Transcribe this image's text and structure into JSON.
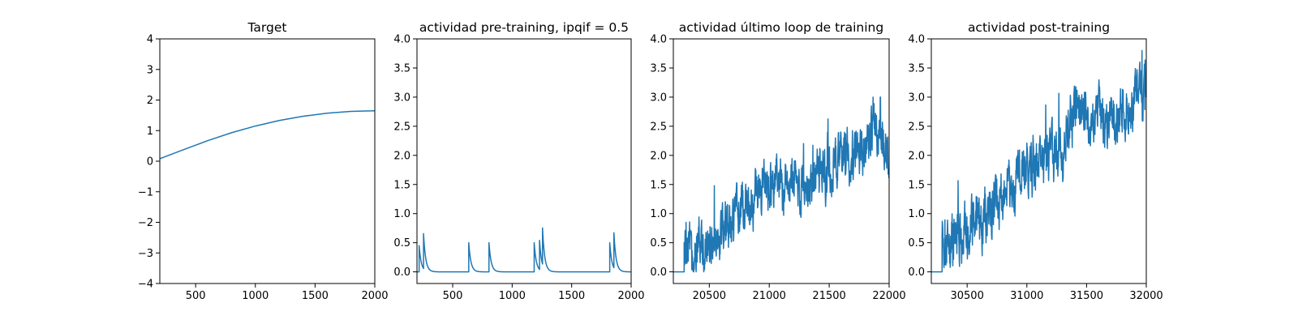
{
  "chart_data": [
    {
      "type": "line",
      "title": "Target",
      "xlim": [
        200,
        2000
      ],
      "ylim": [
        -4,
        4
      ],
      "xticks": [
        500,
        1000,
        1500,
        2000
      ],
      "yticks": [
        -4,
        -3,
        -2,
        -1,
        0,
        1,
        2,
        3,
        4
      ],
      "xtick_labels": [
        "500",
        "1000",
        "1500",
        "2000"
      ],
      "ytick_labels": [
        "−4",
        "−3",
        "−2",
        "−1",
        "0",
        "1",
        "2",
        "3",
        "4"
      ],
      "grid": false,
      "color": "#1f77b4",
      "series": [
        {
          "x": [
            200,
            400,
            600,
            800,
            1000,
            1200,
            1400,
            1600,
            1800,
            2000
          ],
          "y": [
            0.08,
            0.38,
            0.67,
            0.93,
            1.15,
            1.33,
            1.47,
            1.57,
            1.63,
            1.65
          ]
        }
      ]
    },
    {
      "type": "line",
      "title": "actividad pre-training, ipqif = 0.5",
      "xlim": [
        200,
        2000
      ],
      "ylim": [
        -0.2,
        4.0
      ],
      "xticks": [
        500,
        1000,
        1500,
        2000
      ],
      "yticks": [
        0.0,
        0.5,
        1.0,
        1.5,
        2.0,
        2.5,
        3.0,
        3.5,
        4.0
      ],
      "xtick_labels": [
        "500",
        "1000",
        "1500",
        "2000"
      ],
      "ytick_labels": [
        "0.0",
        "0.5",
        "1.0",
        "1.5",
        "2.0",
        "2.5",
        "3.0",
        "3.5",
        "4.0"
      ],
      "grid": false,
      "color": "#1f77b4",
      "spikes": {
        "baseline": 0,
        "times": [
          218,
          255,
          635,
          805,
          1185,
          1230,
          1255,
          1820,
          1855
        ],
        "peaks": [
          0.45,
          0.6,
          0.5,
          0.5,
          0.5,
          0.5,
          0.62,
          0.5,
          0.6
        ]
      }
    },
    {
      "type": "line",
      "title": "actividad último loop de training",
      "xlim": [
        20200,
        22000
      ],
      "ylim": [
        -0.2,
        4.0
      ],
      "xticks": [
        20500,
        21000,
        21500,
        22000
      ],
      "yticks": [
        0.0,
        0.5,
        1.0,
        1.5,
        2.0,
        2.5,
        3.0,
        3.5,
        4.0
      ],
      "xtick_labels": [
        "20500",
        "21000",
        "21500",
        "22000"
      ],
      "ytick_labels": [
        "0.0",
        "0.5",
        "1.0",
        "1.5",
        "2.0",
        "2.5",
        "3.0",
        "3.5",
        "4.0"
      ],
      "grid": false,
      "color": "#1f77b4",
      "noisy_trend": {
        "flat_until": 20290,
        "baseline": 0,
        "trend_x": [
          20290,
          20500,
          20800,
          21000,
          21300,
          21500,
          21800,
          21900,
          22000
        ],
        "trend_y": [
          0.3,
          0.55,
          1.1,
          1.5,
          1.45,
          1.75,
          2.2,
          2.45,
          2.0
        ],
        "noise_amplitude": 0.35,
        "y_range": [
          0.0,
          3.0
        ]
      }
    },
    {
      "type": "line",
      "title": "actividad post-training",
      "xlim": [
        30200,
        32000
      ],
      "ylim": [
        -0.2,
        4.0
      ],
      "xticks": [
        30500,
        31000,
        31500,
        32000
      ],
      "yticks": [
        0.0,
        0.5,
        1.0,
        1.5,
        2.0,
        2.5,
        3.0,
        3.5,
        4.0
      ],
      "xtick_labels": [
        "30500",
        "31000",
        "31500",
        "32000"
      ],
      "ytick_labels": [
        "0.0",
        "0.5",
        "1.0",
        "1.5",
        "2.0",
        "2.5",
        "3.0",
        "3.5",
        "4.0"
      ],
      "grid": false,
      "color": "#1f77b4",
      "noisy_trend": {
        "flat_until": 30290,
        "baseline": 0,
        "trend_x": [
          30290,
          30500,
          30800,
          31000,
          31300,
          31400,
          31700,
          31900,
          32000
        ],
        "trend_y": [
          0.35,
          0.7,
          1.25,
          1.75,
          2.1,
          2.75,
          2.6,
          2.9,
          3.05
        ],
        "noise_amplitude": 0.38,
        "y_range": [
          0.0,
          3.8
        ]
      }
    }
  ]
}
